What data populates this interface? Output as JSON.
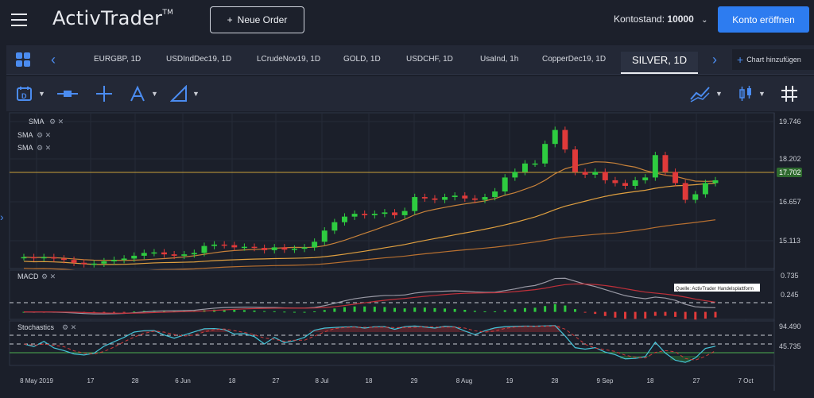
{
  "header": {
    "logo": "ActivTrader",
    "logo_tm": "TM",
    "new_order_label": "Neue Order",
    "balance_label": "Kontostand:",
    "balance_value": "10000",
    "open_account_label": "Konto eröffnen"
  },
  "tabs": [
    {
      "label": "EURGBP, 1D"
    },
    {
      "label": "USDIndDec19, 1D"
    },
    {
      "label": "LCrudeNov19, 1D"
    },
    {
      "label": "GOLD, 1D"
    },
    {
      "label": "USDCHF, 1D"
    },
    {
      "label": "UsaInd, 1h"
    },
    {
      "label": "CopperDec19, 1D"
    },
    {
      "label": "SILVER, 1D",
      "active": true
    }
  ],
  "add_chart_label": "Chart hinzufügen",
  "toolbar": {
    "icons": [
      "calendar-d-icon",
      "horizontal-line-icon",
      "crosshair-icon",
      "pitchfork-icon",
      "ruler-icon",
      "indicators-icon",
      "chart-type-candle-icon",
      "grid-icon"
    ]
  },
  "chart": {
    "indicator_labels": [
      "SMA",
      "SMA",
      "SMA"
    ],
    "macd_label": "MACD",
    "stoch_label": "Stochastics",
    "source_note": "Quelle: ActivTrader Handelsplattform",
    "price_labels": [
      "19.746",
      "18.202",
      "17.702",
      "16.657",
      "15.113"
    ],
    "current_price": "17.702",
    "macd_labels": [
      "0.735",
      "0.245"
    ],
    "stoch_labels": [
      "94.490",
      "45.735"
    ],
    "x_labels": [
      "8 May 2019",
      "17",
      "28",
      "6 Jun",
      "18",
      "27",
      "8 Jul",
      "18",
      "29",
      "8 Aug",
      "19",
      "28",
      "9 Sep",
      "18",
      "27",
      "7 Oct"
    ]
  },
  "chart_data": {
    "type": "candlestick",
    "symbol": "SILVER",
    "timeframe": "1D",
    "ylim": [
      14.6,
      20.0
    ],
    "close_approx": [
      14.95,
      14.92,
      14.95,
      14.9,
      14.85,
      14.75,
      14.7,
      14.72,
      14.8,
      14.85,
      14.9,
      15.0,
      15.1,
      15.12,
      15.05,
      15.0,
      15.05,
      15.1,
      15.35,
      15.4,
      15.38,
      15.3,
      15.32,
      15.28,
      15.2,
      15.3,
      15.22,
      15.25,
      15.3,
      15.5,
      15.9,
      16.2,
      16.4,
      16.5,
      16.45,
      16.5,
      16.55,
      16.45,
      16.6,
      17.1,
      17.05,
      17.0,
      17.1,
      17.15,
      17.05,
      17.0,
      17.1,
      17.3,
      17.8,
      18.0,
      18.3,
      18.3,
      19.0,
      19.5,
      18.8,
      18.0,
      17.9,
      18.0,
      17.7,
      17.6,
      17.5,
      17.7,
      17.8,
      18.6,
      18.0,
      17.6,
      17.0,
      17.2,
      17.6,
      17.7
    ],
    "macd_range": [
      -0.1,
      0.9
    ],
    "stochastics_range": [
      0,
      100
    ],
    "stochastics_levels": [
      80,
      50,
      20
    ]
  }
}
